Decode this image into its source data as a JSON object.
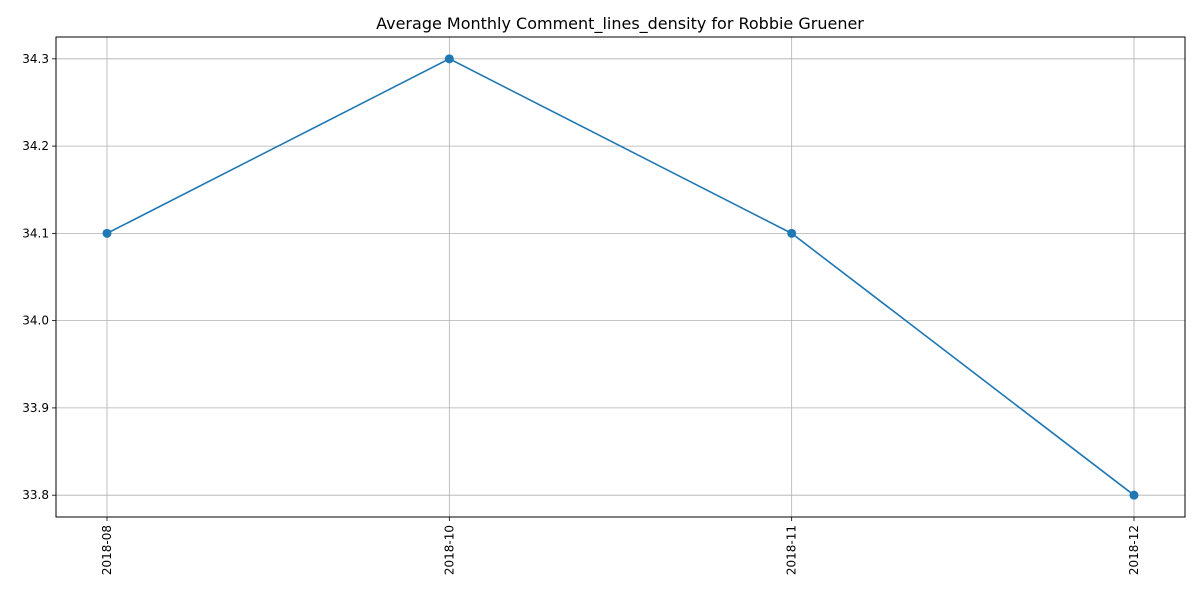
{
  "chart_data": {
    "type": "line",
    "title": "Average Monthly Comment_lines_density for Robbie Gruener",
    "xlabel": "",
    "ylabel": "",
    "categories": [
      "2018-08",
      "2018-10",
      "2018-11",
      "2018-12"
    ],
    "series": [
      {
        "values": [
          34.1,
          34.3,
          34.1,
          33.8
        ]
      }
    ],
    "ylim": [
      33.775,
      34.325
    ],
    "yticks": [
      33.8,
      33.9,
      34.0,
      34.1,
      34.2,
      34.3
    ],
    "ytick_labels": [
      "33.8",
      "33.9",
      "34.0",
      "34.1",
      "34.2",
      "34.3"
    ],
    "grid": true,
    "markers": true,
    "x_tick_rotation": "vertical"
  },
  "colors": {
    "series": "#1f77b4",
    "grid": "#b0b0b0",
    "axis": "#000000"
  }
}
